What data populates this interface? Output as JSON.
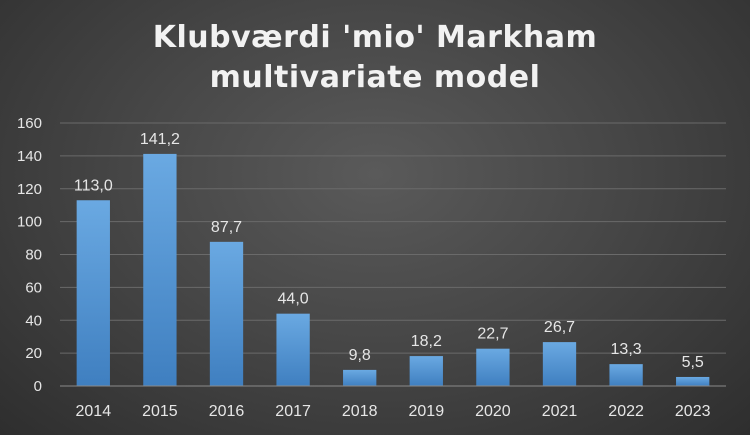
{
  "chart_data": {
    "type": "bar",
    "title": [
      "Klubværdi 'mio' Markham",
      "multivariate model"
    ],
    "categories": [
      "2014",
      "2015",
      "2016",
      "2017",
      "2018",
      "2019",
      "2020",
      "2021",
      "2022",
      "2023"
    ],
    "values": [
      113.0,
      141.2,
      87.7,
      44.0,
      9.8,
      18.2,
      22.7,
      26.7,
      13.3,
      5.5
    ],
    "data_labels": [
      "113,0",
      "141,2",
      "87,7",
      "44,0",
      "9,8",
      "18,2",
      "22,7",
      "26,7",
      "13,3",
      "5,5"
    ],
    "yticks": [
      "0",
      "20",
      "40",
      "60",
      "80",
      "100",
      "120",
      "140",
      "160"
    ],
    "ylim": [
      0,
      160
    ],
    "grid": true,
    "colors": {
      "bar": "#5b9bd5",
      "bar_top": "#6aa9e2",
      "bar_bottom": "#3f7fc0"
    }
  }
}
